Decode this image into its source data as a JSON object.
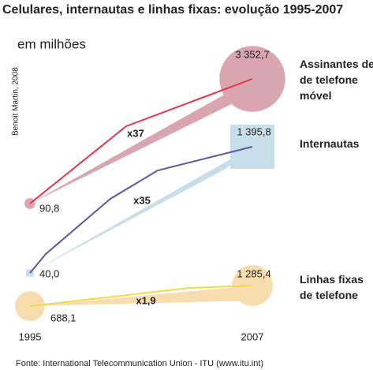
{
  "chart_data": {
    "type": "bubble",
    "title": "Celulares, internautas e linhas fixas: evolução 1995-2007",
    "subtitle": "em milhões",
    "credit": "Benoit Martin, 2008",
    "source": "Fonte: International Telecommunication Union - ITU (www.itu.int)",
    "x": [
      "1995",
      "2007"
    ],
    "series": [
      {
        "name": "Assinantes de\nde telefone\nmóvel",
        "shape": "circle",
        "color": "#d9a5ae",
        "line_color": "#e8334a",
        "values": [
          90.8,
          3352.7
        ],
        "value_labels": [
          "90,8",
          "3 352,7"
        ],
        "change": "x37"
      },
      {
        "name": "Internautas",
        "shape": "square",
        "color": "#c8dfe9",
        "line_color": "#5b56a6",
        "values": [
          40.0,
          1395.8
        ],
        "value_labels": [
          "40,0",
          "1 395,8"
        ],
        "change": "x35"
      },
      {
        "name": "Linhas fixas\nde telefone",
        "shape": "circle",
        "color": "#f7dcae",
        "line_color": "#f2d84a",
        "values": [
          688.1,
          1285.4
        ],
        "value_labels": [
          "688,1",
          "1 285,4"
        ],
        "change": "x1,9"
      }
    ]
  }
}
